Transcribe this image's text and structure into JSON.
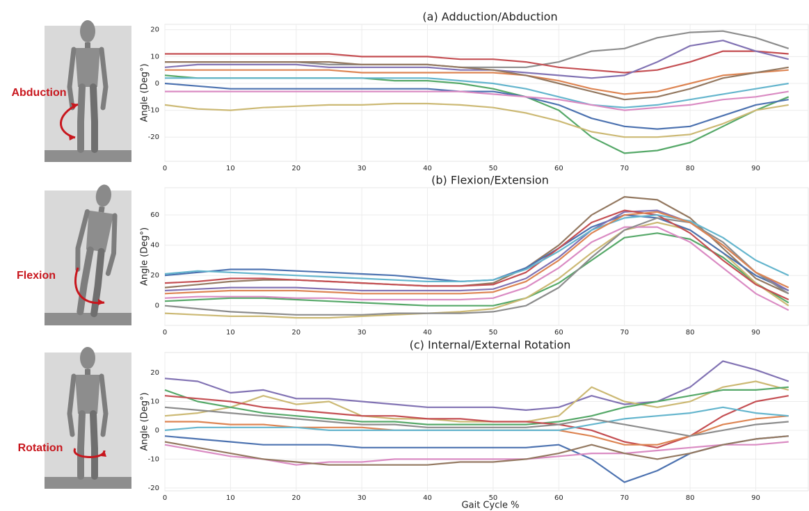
{
  "illustrations": [
    {
      "label": "Abduction"
    },
    {
      "label": "Flexion"
    },
    {
      "label": "Rotation"
    }
  ],
  "chart_data": [
    {
      "type": "line",
      "title": "(a) Adduction/Abduction",
      "y_label": "Angle (Deg°)",
      "grid": true,
      "x": [
        0,
        5,
        10,
        15,
        20,
        25,
        30,
        35,
        40,
        45,
        50,
        55,
        60,
        65,
        70,
        75,
        80,
        85,
        90,
        95
      ],
      "xlim": [
        0,
        98
      ],
      "xticks": [
        0,
        10,
        20,
        30,
        40,
        50,
        60,
        70,
        80,
        90
      ],
      "ylim": [
        -29,
        22
      ],
      "yticks": [
        -20,
        -10,
        0,
        10,
        20
      ],
      "series": [
        {
          "color": "#8c8c8c",
          "values": [
            8,
            8,
            8,
            8,
            8,
            7,
            7,
            7,
            7,
            6,
            6,
            6,
            8,
            12,
            13,
            17,
            19,
            19.5,
            17,
            13
          ]
        },
        {
          "color": "#55a868",
          "values": [
            3,
            2,
            2,
            2,
            2,
            2,
            2,
            1,
            1,
            0,
            -2,
            -5,
            -10,
            -20,
            -26,
            -25,
            -22,
            -16,
            -10,
            -5
          ]
        },
        {
          "color": "#ccb974",
          "values": [
            -8,
            -9.5,
            -10,
            -9,
            -8.5,
            -8,
            -8,
            -7.5,
            -7.5,
            -8,
            -9,
            -11,
            -14,
            -18,
            -20,
            -20,
            -19,
            -15,
            -10,
            -8
          ]
        },
        {
          "color": "#4c72b0",
          "values": [
            0,
            -1,
            -2,
            -2,
            -2,
            -2,
            -2,
            -2,
            -2,
            -3,
            -3,
            -5,
            -8,
            -13,
            -16,
            -17,
            -16,
            -12,
            -8,
            -6
          ]
        },
        {
          "color": "#c44e52",
          "values": [
            11,
            11,
            11,
            11,
            11,
            11,
            10,
            10,
            10,
            9,
            9,
            8,
            6,
            5,
            4,
            5,
            8,
            12,
            12,
            11
          ]
        },
        {
          "color": "#dd8452",
          "values": [
            5,
            5,
            5,
            5,
            5,
            5,
            4,
            4,
            4,
            4,
            4,
            3,
            1,
            -2,
            -4,
            -3,
            0,
            3,
            4,
            5
          ]
        },
        {
          "color": "#8172b3",
          "values": [
            6,
            7,
            7,
            7,
            7,
            6,
            6,
            6,
            6,
            5,
            5,
            4,
            3,
            2,
            3,
            8,
            14,
            16,
            12,
            9
          ]
        },
        {
          "color": "#64b5cd",
          "values": [
            2,
            2,
            2,
            2,
            2,
            2,
            2,
            2,
            2,
            1,
            0,
            -2,
            -5,
            -8,
            -9,
            -8,
            -6,
            -4,
            -2,
            0
          ]
        },
        {
          "color": "#da8bc3",
          "values": [
            -3,
            -3,
            -3,
            -3,
            -3,
            -3,
            -3,
            -3,
            -3,
            -3,
            -4,
            -5,
            -6,
            -8,
            -10,
            -9,
            -8,
            -6,
            -5,
            -3
          ]
        },
        {
          "color": "#937860",
          "values": [
            8,
            8,
            8,
            8,
            8,
            8,
            7,
            7,
            7,
            6,
            5,
            3,
            0,
            -3,
            -6,
            -5,
            -2,
            2,
            4,
            6
          ]
        }
      ]
    },
    {
      "type": "line",
      "title": "(b) Flexion/Extension",
      "y_label": "Angle (Deg°)",
      "grid": true,
      "x": [
        0,
        5,
        10,
        15,
        20,
        25,
        30,
        35,
        40,
        45,
        50,
        55,
        60,
        65,
        70,
        75,
        80,
        85,
        90,
        95
      ],
      "xlim": [
        0,
        98
      ],
      "xticks": [
        0,
        10,
        20,
        30,
        40,
        50,
        60,
        70,
        80,
        90
      ],
      "ylim": [
        -13,
        78
      ],
      "yticks": [
        0,
        20,
        40,
        60
      ],
      "series": [
        {
          "color": "#937860",
          "values": [
            12,
            14,
            16,
            17,
            17,
            16,
            15,
            14,
            13,
            13,
            15,
            25,
            40,
            60,
            72,
            70,
            58,
            38,
            18,
            8
          ]
        },
        {
          "color": "#55a868",
          "values": [
            3,
            4,
            5,
            5,
            4,
            3,
            2,
            1,
            0,
            0,
            0,
            5,
            15,
            30,
            45,
            48,
            44,
            32,
            15,
            2
          ]
        },
        {
          "color": "#ccb974",
          "values": [
            -5,
            -6,
            -7,
            -7,
            -8,
            -8,
            -7,
            -6,
            -5,
            -4,
            -2,
            5,
            18,
            35,
            50,
            55,
            50,
            35,
            15,
            0
          ]
        },
        {
          "color": "#4c72b0",
          "values": [
            20,
            22,
            24,
            24,
            23,
            22,
            21,
            20,
            18,
            16,
            17,
            25,
            38,
            52,
            60,
            58,
            50,
            35,
            20,
            10
          ]
        },
        {
          "color": "#da8bc3",
          "values": [
            5,
            6,
            6,
            6,
            5,
            5,
            4,
            4,
            4,
            4,
            5,
            12,
            25,
            42,
            52,
            52,
            42,
            25,
            8,
            -3
          ]
        },
        {
          "color": "#8172b3",
          "values": [
            10,
            11,
            12,
            12,
            12,
            11,
            10,
            10,
            10,
            10,
            11,
            18,
            32,
            50,
            62,
            63,
            55,
            40,
            22,
            10
          ]
        },
        {
          "color": "#8c8c8c",
          "values": [
            0,
            -2,
            -4,
            -5,
            -6,
            -6,
            -6,
            -5,
            -5,
            -5,
            -4,
            0,
            12,
            32,
            50,
            58,
            55,
            42,
            22,
            8
          ]
        },
        {
          "color": "#c44e52",
          "values": [
            15,
            16,
            18,
            18,
            17,
            16,
            15,
            14,
            13,
            13,
            14,
            22,
            38,
            55,
            63,
            60,
            48,
            30,
            14,
            4
          ]
        },
        {
          "color": "#64b5cd",
          "values": [
            21,
            23,
            22,
            21,
            20,
            19,
            18,
            17,
            16,
            16,
            17,
            24,
            36,
            50,
            58,
            60,
            56,
            45,
            30,
            20
          ]
        },
        {
          "color": "#dd8452",
          "values": [
            8,
            9,
            10,
            10,
            10,
            9,
            8,
            8,
            8,
            8,
            9,
            16,
            30,
            48,
            60,
            62,
            55,
            40,
            22,
            12
          ]
        }
      ]
    },
    {
      "type": "line",
      "title": "(c) Internal/External Rotation",
      "y_label": "Angle (Deg°)",
      "x_label": "Gait Cycle %",
      "grid": true,
      "x": [
        0,
        5,
        10,
        15,
        20,
        25,
        30,
        35,
        40,
        45,
        50,
        55,
        60,
        65,
        70,
        75,
        80,
        85,
        90,
        95
      ],
      "xlim": [
        0,
        98
      ],
      "xticks": [
        0,
        10,
        20,
        30,
        40,
        50,
        60,
        70,
        80,
        90
      ],
      "ylim": [
        -21,
        27
      ],
      "yticks": [
        -20,
        -10,
        0,
        10,
        20
      ],
      "series": [
        {
          "color": "#8172b3",
          "values": [
            18,
            17,
            13,
            14,
            11,
            11,
            10,
            9,
            8,
            8,
            8,
            7,
            8,
            12,
            9,
            10,
            15,
            24,
            21,
            17
          ]
        },
        {
          "color": "#ccb974",
          "values": [
            5,
            6,
            8,
            12,
            9,
            10,
            5,
            4,
            4,
            3,
            3,
            3,
            5,
            15,
            10,
            8,
            10,
            15,
            17,
            14
          ]
        },
        {
          "color": "#4c72b0",
          "values": [
            -2,
            -3,
            -4,
            -5,
            -5,
            -5,
            -6,
            -6,
            -6,
            -6,
            -6,
            -6,
            -5,
            -10,
            -18,
            -14,
            -8,
            -5,
            -3,
            -2
          ]
        },
        {
          "color": "#da8bc3",
          "values": [
            -5,
            -7,
            -9,
            -10,
            -12,
            -11,
            -11,
            -10,
            -10,
            -10,
            -10,
            -10,
            -9,
            -8,
            -8,
            -7,
            -6,
            -5,
            -5,
            -4
          ]
        },
        {
          "color": "#55a868",
          "values": [
            14,
            10,
            8,
            6,
            5,
            4,
            3,
            3,
            2,
            2,
            2,
            2,
            3,
            5,
            8,
            10,
            12,
            14,
            14,
            15
          ]
        },
        {
          "color": "#937860",
          "values": [
            -4,
            -6,
            -8,
            -10,
            -11,
            -12,
            -12,
            -12,
            -12,
            -11,
            -11,
            -10,
            -8,
            -5,
            -8,
            -10,
            -8,
            -5,
            -3,
            -2
          ]
        },
        {
          "color": "#c44e52",
          "values": [
            12,
            11,
            10,
            8,
            7,
            6,
            5,
            5,
            4,
            4,
            3,
            3,
            2,
            0,
            -4,
            -6,
            -2,
            5,
            10,
            12
          ]
        },
        {
          "color": "#dd8452",
          "values": [
            3,
            3,
            2,
            2,
            1,
            1,
            1,
            0,
            0,
            0,
            0,
            0,
            0,
            -2,
            -5,
            -5,
            -2,
            2,
            4,
            5
          ]
        },
        {
          "color": "#64b5cd",
          "values": [
            0,
            1,
            1,
            1,
            1,
            0,
            0,
            0,
            0,
            0,
            0,
            0,
            0,
            2,
            4,
            5,
            6,
            8,
            6,
            5
          ]
        },
        {
          "color": "#8c8c8c",
          "values": [
            8,
            7,
            6,
            5,
            4,
            3,
            2,
            2,
            1,
            1,
            1,
            1,
            2,
            4,
            2,
            0,
            -2,
            0,
            2,
            3
          ]
        }
      ]
    }
  ]
}
